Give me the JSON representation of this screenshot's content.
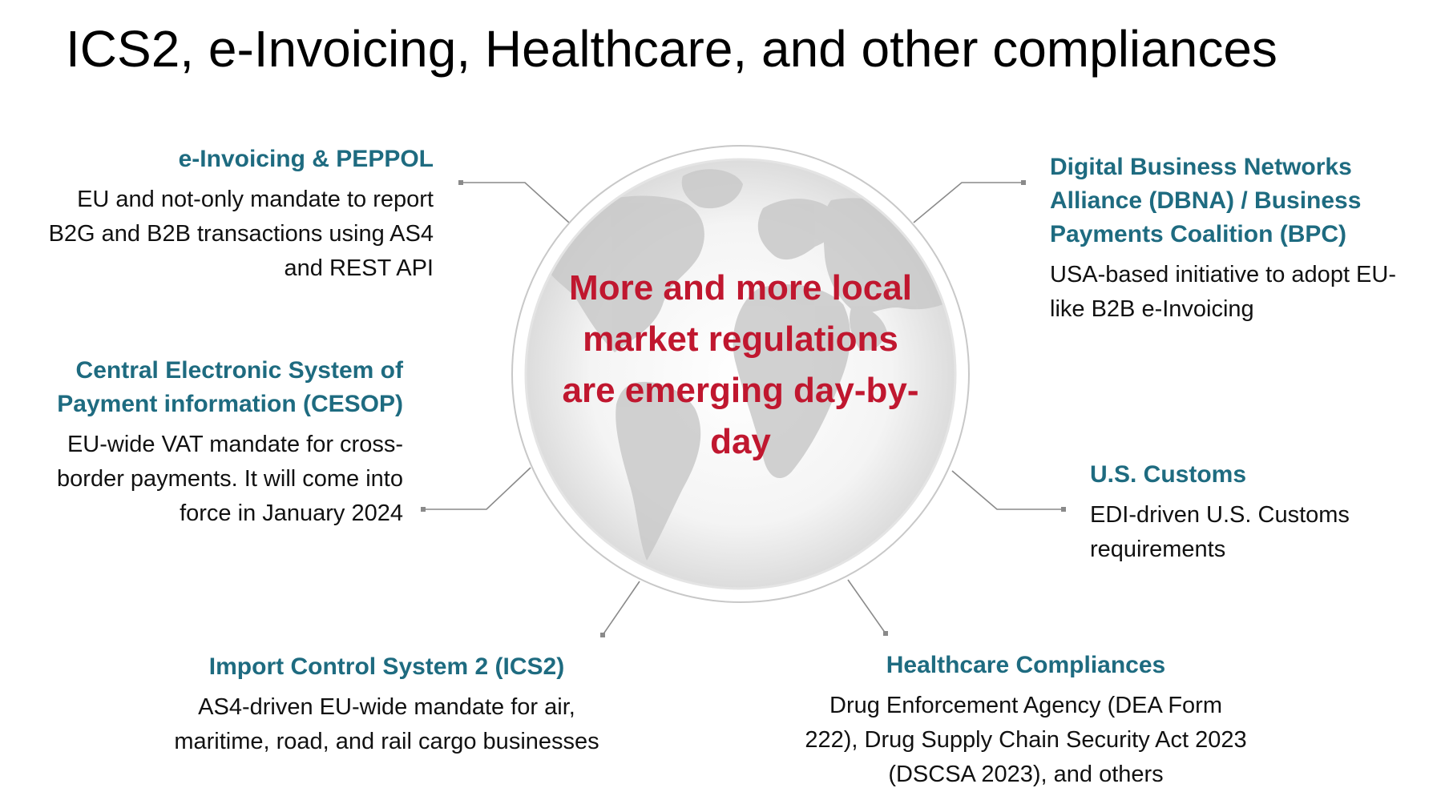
{
  "title": "ICS2, e-Invoicing, Healthcare, and other compliances",
  "center_text": "More and more local market regulations are emerging day-by-day",
  "colors": {
    "heading": "#1e6b80",
    "accent": "#c0172f",
    "connector": "#8a8a8a",
    "globe_outline": "#c8c8c8",
    "globe_land": "#c9c9c9"
  },
  "items": {
    "einvoicing": {
      "title": "e-Invoicing & PEPPOL",
      "desc": "EU and not-only mandate to report B2G and B2B transactions using AS4 and REST API"
    },
    "cesop": {
      "title": "Central Electronic System of Payment information (CESOP)",
      "desc": "EU-wide VAT mandate for cross-border payments. It will come into force in January 2024"
    },
    "ics2": {
      "title": "Import Control System 2 (ICS2)",
      "desc": "AS4-driven EU-wide mandate for air, maritime, road, and rail cargo businesses"
    },
    "dbna": {
      "title": "Digital Business Networks Alliance (DBNA) / Business Payments Coalition (BPC)",
      "desc": "USA-based initiative to adopt EU-like B2B e-Invoicing"
    },
    "customs": {
      "title": "U.S. Customs",
      "desc": "EDI-driven U.S. Customs requirements"
    },
    "healthcare": {
      "title": "Healthcare Compliances",
      "desc": "Drug Enforcement Agency (DEA Form 222), Drug Supply Chain Security Act 2023 (DSCSA 2023), and others"
    }
  }
}
